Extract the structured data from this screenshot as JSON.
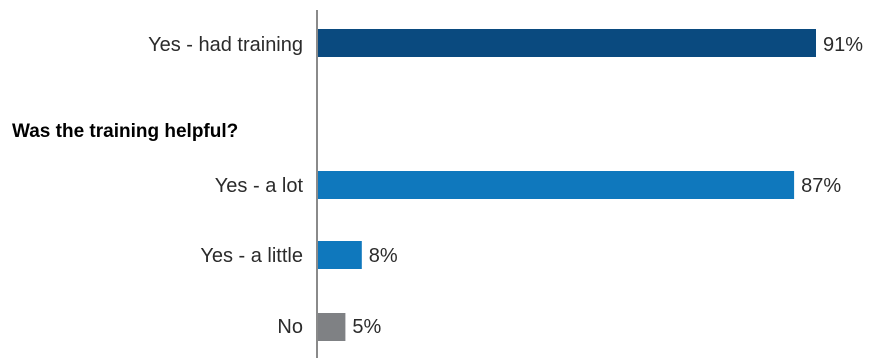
{
  "chart_data": {
    "type": "bar",
    "orientation": "horizontal",
    "xlim": [
      0,
      100
    ],
    "unit": "%",
    "grid": false,
    "sections": [
      {
        "title": "",
        "categories": [
          "Yes - had training"
        ],
        "values": [
          91
        ],
        "labels": [
          "91%"
        ],
        "colors": [
          "#0a4a7f"
        ]
      },
      {
        "title": "Was the training helpful?",
        "categories": [
          "Yes - a lot",
          "Yes - a little",
          "No"
        ],
        "values": [
          87,
          8,
          5
        ],
        "labels": [
          "87%",
          "8%",
          "5%"
        ],
        "colors": [
          "#0f78bd",
          "#0f78bd",
          "#7f8184"
        ]
      }
    ]
  }
}
